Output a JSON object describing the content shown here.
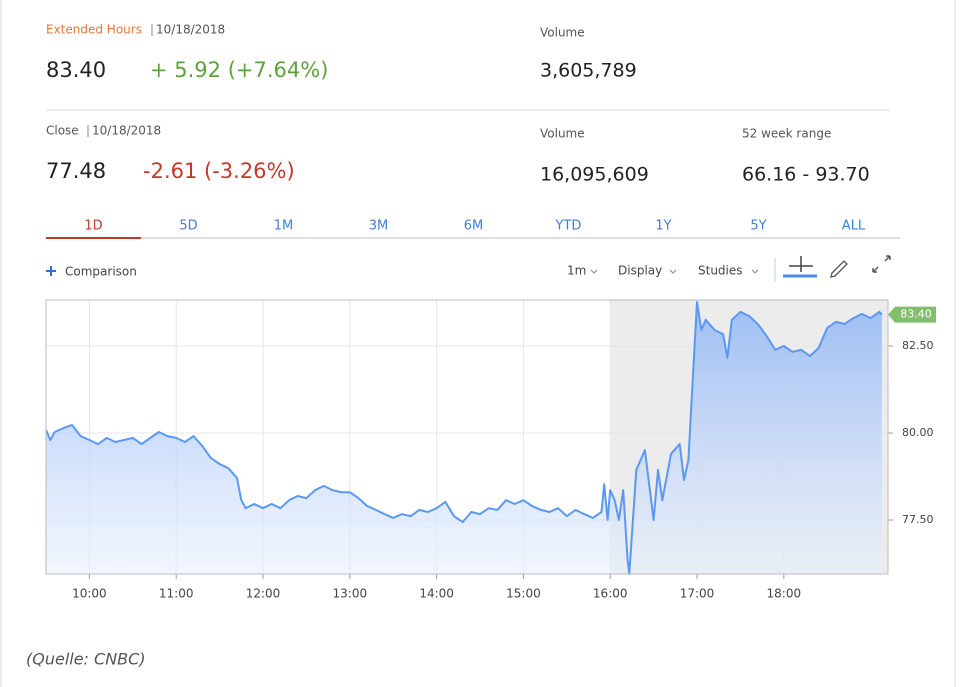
{
  "quote": {
    "extended": {
      "label": "Extended Hours",
      "date": "10/18/2018",
      "price": "83.40",
      "change": "+ 5.92 (+7.64%)",
      "volume_label": "Volume",
      "volume": "3,605,789"
    },
    "close": {
      "label": "Close",
      "date": "10/18/2018",
      "price": "77.48",
      "change": "-2.61 (-3.26%)",
      "volume_label": "Volume",
      "volume": "16,095,609",
      "range_label": "52 week range",
      "range": "66.16 - 93.70"
    }
  },
  "tabs": [
    "1D",
    "5D",
    "1M",
    "3M",
    "6M",
    "YTD",
    "1Y",
    "5Y",
    "ALL"
  ],
  "active_tab": 0,
  "toolbar": {
    "comparison": "Comparison",
    "interval": "1m",
    "display": "Display",
    "studies": "Studies"
  },
  "chart_data": {
    "type": "line",
    "x": [
      9.5,
      9.55,
      9.6,
      9.7,
      9.8,
      9.9,
      10,
      10.1,
      10.2,
      10.3,
      10.4,
      10.5,
      10.6,
      10.7,
      10.8,
      10.9,
      11,
      11.1,
      11.2,
      11.3,
      11.4,
      11.5,
      11.6,
      11.7,
      11.75,
      11.8,
      11.9,
      12,
      12.1,
      12.2,
      12.3,
      12.4,
      12.5,
      12.6,
      12.7,
      12.8,
      12.9,
      13,
      13.1,
      13.2,
      13.3,
      13.4,
      13.5,
      13.6,
      13.7,
      13.8,
      13.9,
      14,
      14.1,
      14.2,
      14.3,
      14.4,
      14.5,
      14.6,
      14.7,
      14.8,
      14.9,
      15,
      15.1,
      15.2,
      15.3,
      15.4,
      15.5,
      15.6,
      15.7,
      15.8,
      15.9,
      15.93,
      15.97,
      16,
      16.05,
      16.1,
      16.15,
      16.2,
      16.22,
      16.3,
      16.4,
      16.5,
      16.55,
      16.6,
      16.7,
      16.8,
      16.85,
      16.9,
      16.95,
      17,
      17.05,
      17.1,
      17.2,
      17.3,
      17.35,
      17.4,
      17.5,
      17.6,
      17.7,
      17.8,
      17.9,
      18,
      18.1,
      18.2,
      18.3,
      18.4,
      18.5,
      18.6,
      18.7,
      18.8,
      18.9,
      19,
      19.1,
      19.13
    ],
    "values": [
      80.09,
      79.8,
      80.03,
      80.14,
      80.23,
      79.91,
      79.8,
      79.68,
      79.86,
      79.74,
      79.8,
      79.86,
      79.68,
      79.86,
      80.03,
      79.91,
      79.86,
      79.74,
      79.91,
      79.63,
      79.28,
      79.11,
      78.99,
      78.71,
      78.07,
      77.84,
      77.96,
      77.84,
      77.96,
      77.84,
      78.07,
      78.19,
      78.13,
      78.36,
      78.48,
      78.36,
      78.3,
      78.3,
      78.13,
      77.9,
      77.79,
      77.67,
      77.56,
      77.67,
      77.61,
      77.79,
      77.73,
      77.84,
      78.02,
      77.61,
      77.44,
      77.73,
      77.67,
      77.84,
      77.79,
      78.07,
      77.96,
      78.07,
      77.9,
      77.79,
      77.73,
      77.84,
      77.61,
      77.79,
      77.67,
      77.56,
      77.73,
      78.53,
      77.5,
      78.36,
      78.07,
      77.5,
      78.36,
      76.35,
      75.95,
      78.94,
      79.51,
      77.5,
      78.94,
      78.07,
      79.4,
      79.68,
      78.65,
      79.22,
      81.52,
      83.76,
      82.96,
      83.25,
      82.96,
      82.84,
      82.16,
      83.25,
      83.48,
      83.36,
      83.13,
      82.79,
      82.39,
      82.5,
      82.33,
      82.39,
      82.21,
      82.44,
      83.02,
      83.19,
      83.13,
      83.3,
      83.42,
      83.3,
      83.48,
      83.4
    ],
    "color": "#5b98f2",
    "xlim": [
      9.5,
      19.2
    ],
    "ylim": [
      75.95,
      83.82
    ],
    "xticks": [
      {
        "value": 10,
        "label": "10:00"
      },
      {
        "value": 11,
        "label": "11:00"
      },
      {
        "value": 12,
        "label": "12:00"
      },
      {
        "value": 13,
        "label": "13:00"
      },
      {
        "value": 14,
        "label": "14:00"
      },
      {
        "value": 15,
        "label": "15:00"
      },
      {
        "value": 16,
        "label": "16:00"
      },
      {
        "value": 17,
        "label": "17:00"
      },
      {
        "value": 18,
        "label": "18:00"
      }
    ],
    "yticks": [
      {
        "value": 77.5,
        "label": "77.50"
      },
      {
        "value": 80,
        "label": "80.00"
      },
      {
        "value": 82.5,
        "label": "82.50"
      }
    ],
    "grid": true,
    "shade_from": 16,
    "last_price": {
      "value": 83.4,
      "label": "83.40"
    }
  },
  "caption": "(Quelle: CNBC)"
}
